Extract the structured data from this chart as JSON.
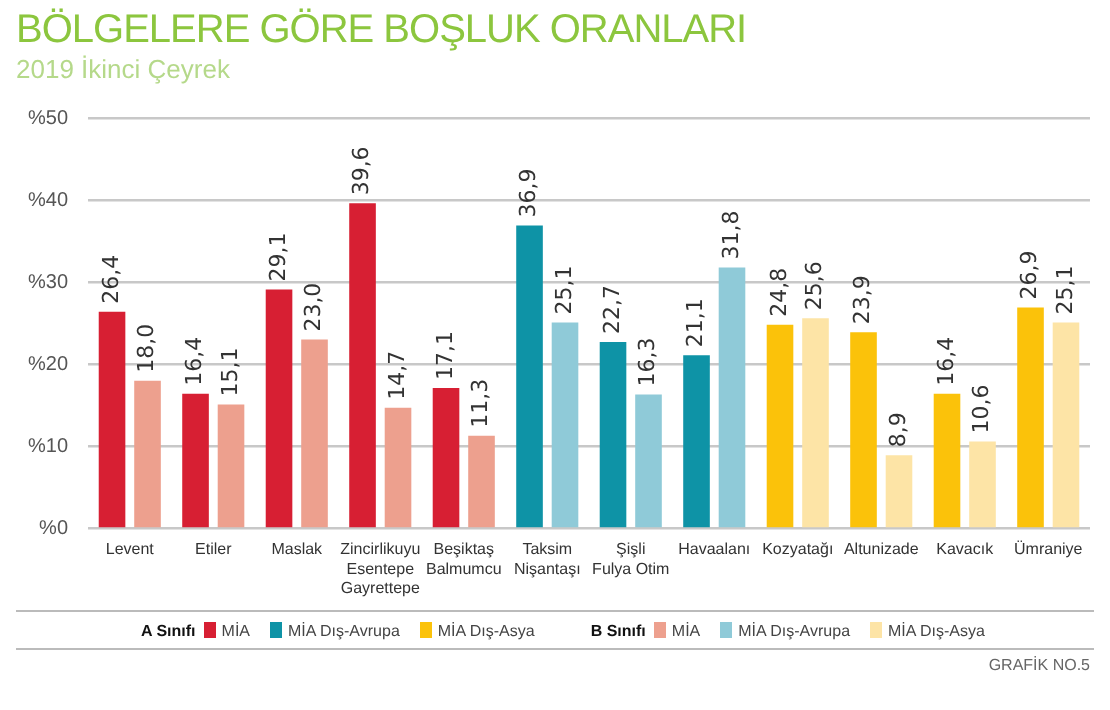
{
  "chart_data": {
    "type": "bar",
    "title": "BÖLGELERE GÖRE BOŞLUK ORANLARI",
    "subtitle": "2019 İkinci Çeyrek",
    "categories": [
      "Levent",
      "Etiler",
      "Maslak",
      "Zincirlikuyu\nEsentepe\nGayrettepe",
      "Beşiktaş\nBalmumcu",
      "Taksim\nNişantaşı",
      "Şişli\nFulya Otim",
      "Havaalanı",
      "Kozyatağı",
      "Altunizade",
      "Kavacık",
      "Ümraniye"
    ],
    "series": [
      {
        "name": "MİA",
        "color": "#d71f33",
        "values": [
          26.4,
          16.4,
          29.1,
          39.6,
          17.1,
          null,
          null,
          null,
          null,
          null,
          null,
          null
        ],
        "value_labels": [
          "26,4",
          "16,4",
          "29,1",
          "39,6",
          "17,1",
          null,
          null,
          null,
          null,
          null,
          null,
          null
        ]
      },
      {
        "name": "MİA Dış-Avrupa",
        "color": "#0e93a6",
        "values": [
          null,
          null,
          null,
          null,
          null,
          36.9,
          22.7,
          21.1,
          null,
          null,
          null,
          null
        ],
        "value_labels": [
          null,
          null,
          null,
          null,
          null,
          "36,9",
          "22,7",
          "21,1",
          null,
          null,
          null,
          null
        ]
      },
      {
        "name": "MİA Dış-Asya",
        "color": "#fbc20a",
        "values": [
          null,
          null,
          null,
          null,
          null,
          null,
          null,
          null,
          24.8,
          23.9,
          16.4,
          26.9
        ],
        "value_labels": [
          null,
          null,
          null,
          null,
          null,
          null,
          null,
          null,
          "24,8",
          "23,9",
          "16,4",
          "26,9"
        ]
      },
      {
        "name": "MİA",
        "color": "#eda08e",
        "values": [
          18.0,
          15.1,
          23.0,
          14.7,
          11.3,
          null,
          null,
          null,
          null,
          null,
          null,
          null
        ],
        "value_labels": [
          "18,0",
          "15,1",
          "23,0",
          "14,7",
          "11,3",
          null,
          null,
          null,
          null,
          null,
          null,
          null
        ]
      },
      {
        "name": "MİA Dış-Avrupa",
        "color": "#8fcad8",
        "values": [
          null,
          null,
          null,
          null,
          null,
          25.1,
          16.3,
          31.8,
          null,
          null,
          null,
          null
        ],
        "value_labels": [
          null,
          null,
          null,
          null,
          null,
          "25,1",
          "16,3",
          "31,8",
          null,
          null,
          null,
          null
        ]
      },
      {
        "name": "MİA Dış-Asya",
        "color": "#fde4a6",
        "values": [
          null,
          null,
          null,
          null,
          null,
          null,
          null,
          null,
          25.6,
          8.9,
          10.6,
          25.1
        ],
        "value_labels": [
          null,
          null,
          null,
          null,
          null,
          null,
          null,
          null,
          "25,6",
          "8,9",
          "10,6",
          "25,1"
        ]
      }
    ],
    "ylim": [
      0,
      50
    ],
    "yticks": [
      {
        "value": 0,
        "label": "%0"
      },
      {
        "value": 10,
        "label": "%10"
      },
      {
        "value": 20,
        "label": "%20"
      },
      {
        "value": 30,
        "label": "%30"
      },
      {
        "value": 40,
        "label": "%40"
      },
      {
        "value": 50,
        "label": "%50"
      }
    ],
    "grid": "y",
    "legend": "bottom",
    "annotations": [
      "A Sınıfı",
      "B Sınıfı",
      "GRAFİK NO.5"
    ]
  }
}
